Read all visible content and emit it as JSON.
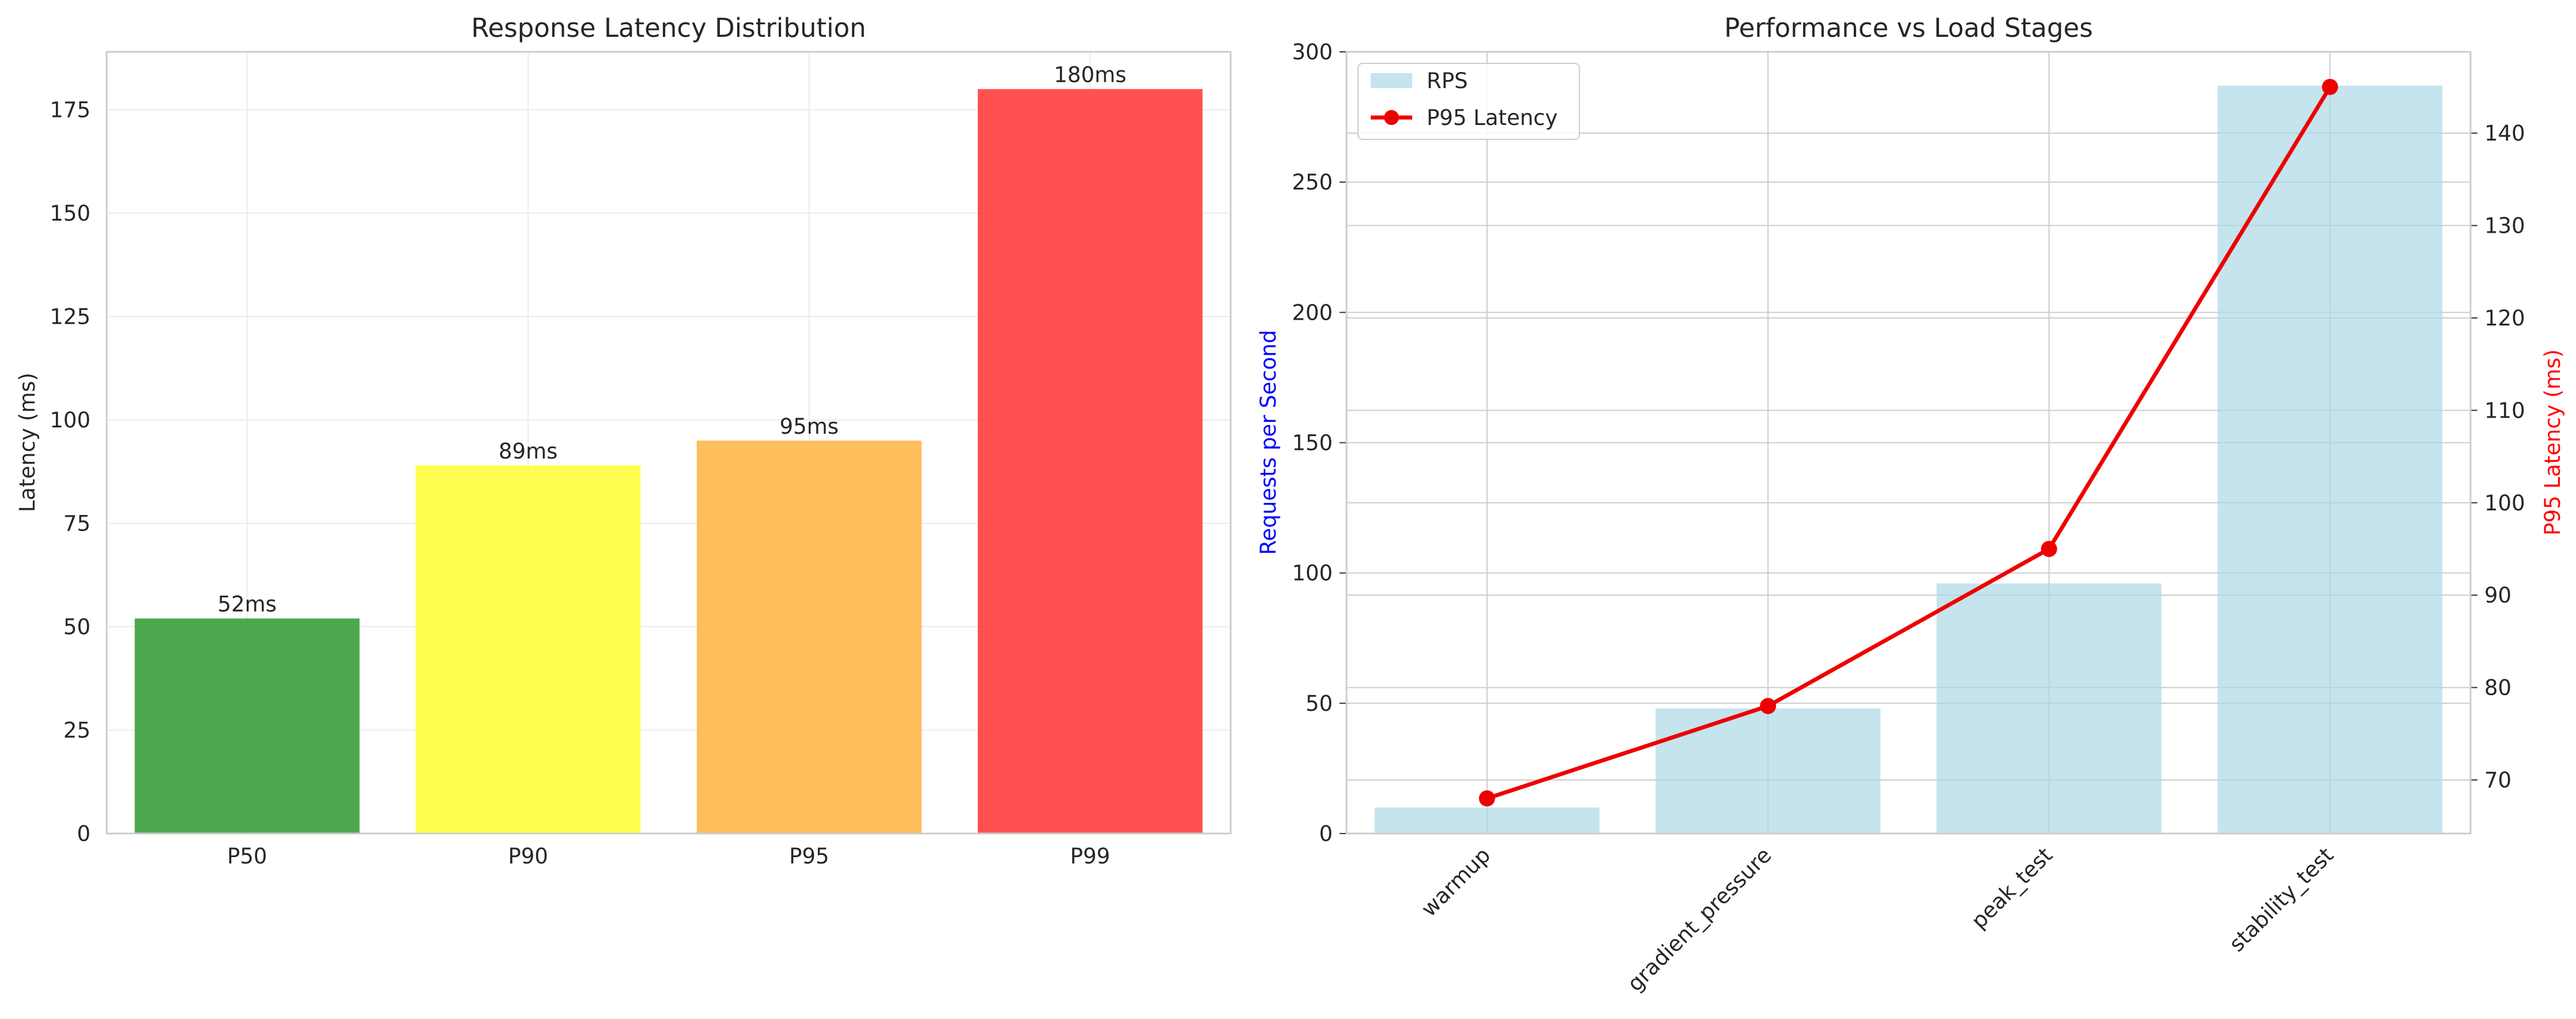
{
  "chart_data": [
    {
      "type": "bar",
      "title": "Response Latency Distribution",
      "xlabel": "",
      "ylabel": "Latency (ms)",
      "categories": [
        "P50",
        "P90",
        "P95",
        "P99"
      ],
      "values": [
        52,
        89,
        95,
        180
      ],
      "data_labels": [
        "52ms",
        "89ms",
        "95ms",
        "180ms"
      ],
      "colors": [
        "#2e9a2e",
        "#ffff33",
        "#ffb33f",
        "#ff3333"
      ],
      "ylim": [
        0,
        189
      ],
      "yticks": [
        0,
        25,
        50,
        75,
        100,
        125,
        150,
        175
      ],
      "grid": true
    },
    {
      "type": "bar",
      "title": "Performance vs Load Stages",
      "xlabel": "",
      "ylabel": "Requests per Second",
      "ylabel_color": "#0000ff",
      "y2label": "P95 Latency (ms)",
      "y2label_color": "#ff0000",
      "categories": [
        "warmup",
        "gradient_pressure",
        "peak_test",
        "stability_test"
      ],
      "series": [
        {
          "name": "RPS",
          "kind": "bar",
          "axis": "left",
          "color": "#add8e6",
          "values": [
            10,
            48,
            96,
            287
          ]
        },
        {
          "name": "P95 Latency",
          "kind": "line",
          "axis": "right",
          "color": "#ee0000",
          "values": [
            68,
            78,
            95,
            145
          ]
        }
      ],
      "ylim": [
        0,
        300
      ],
      "yticks": [
        0,
        50,
        100,
        150,
        200,
        250,
        300
      ],
      "y2lim": [
        64.2,
        148.8
      ],
      "y2ticks": [
        70,
        80,
        90,
        100,
        110,
        120,
        130,
        140
      ],
      "legend": "top-left",
      "grid": true
    }
  ]
}
